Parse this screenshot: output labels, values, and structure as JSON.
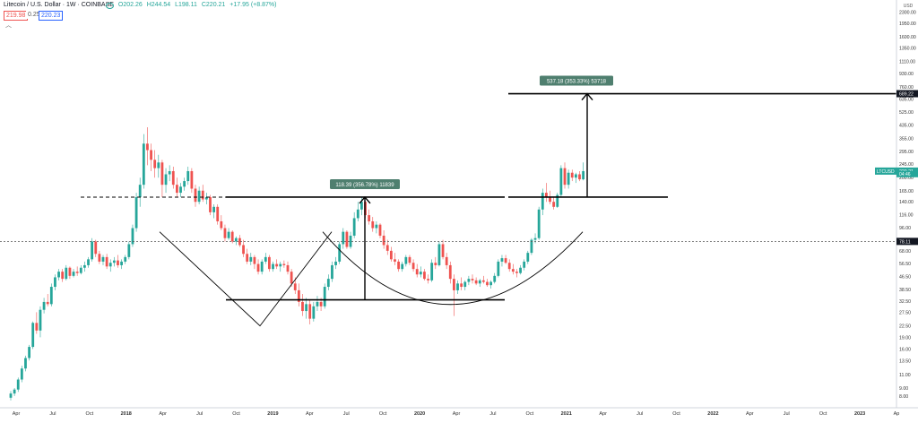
{
  "header": {
    "symbol": "Litecoin / U.S. Dollar · 1W · COINBASE",
    "open": "O202.26",
    "high": "H244.54",
    "low": "L198.11",
    "close": "C220.21",
    "change": "+17.95 (+8.87%)",
    "sell_price": "219.98",
    "spread": "0.25",
    "buy_price": "220.23",
    "collapse_glyph": "︿"
  },
  "colors": {
    "up": "#26a69a",
    "down": "#ef5350",
    "annotation": "#000000",
    "label_bg": "#4f7f6f"
  },
  "chart_data": {
    "type": "candlestick",
    "y_scale": "log",
    "currency_label": "USD",
    "ylim": [
      7,
      2600
    ],
    "y_ticks": [
      "2600.00",
      "2300.00",
      "1950.00",
      "1600.00",
      "1350.00",
      "1110.00",
      "930.00",
      "760.00",
      "635.00",
      "525.00",
      "435.00",
      "355.00",
      "295.00",
      "245.00",
      "200.00",
      "165.00",
      "140.00",
      "116.00",
      "96.00",
      "78.00",
      "68.00",
      "56.50",
      "46.50",
      "38.50",
      "32.50",
      "27.50",
      "22.50",
      "19.00",
      "16.00",
      "13.50",
      "11.00",
      "9.00",
      "8.00"
    ],
    "x_ticks": [
      "Apr",
      "Jul",
      "Oct",
      "2018",
      "Apr",
      "Jul",
      "Oct",
      "2019",
      "Apr",
      "Jul",
      "Oct",
      "2020",
      "Apr",
      "Jul",
      "Oct",
      "2021",
      "Apr",
      "Jul",
      "Oct",
      "2022",
      "Apr",
      "Jul",
      "Oct",
      "2023",
      "Ap"
    ],
    "price_markers": [
      {
        "label": "689.22",
        "value": 689.22
      },
      {
        "label": "LTCUSD",
        "value": 220.21
      },
      {
        "label": "220.21",
        "value": 220.21
      },
      {
        "label": "04:46",
        "value": 212
      },
      {
        "label": "78.11",
        "value": 78.11
      }
    ],
    "measurements": [
      {
        "label": "118.39 (356.78%) 11839",
        "from": 33,
        "to": 150
      },
      {
        "label": "537.18 (353.33%) 53718",
        "from": 150,
        "to": 689
      }
    ],
    "levels": [
      {
        "value": 150
      },
      {
        "value": 33
      },
      {
        "value": 689
      },
      {
        "value": 78.11
      }
    ],
    "candles": [
      [
        7.8,
        8.6,
        7.5,
        8.3
      ],
      [
        8.3,
        9.0,
        8.0,
        8.8
      ],
      [
        8.8,
        10.5,
        8.5,
        10.2
      ],
      [
        10.2,
        12.5,
        9.8,
        12.0
      ],
      [
        12.0,
        14.5,
        11.5,
        14.0
      ],
      [
        14.0,
        17.0,
        13.5,
        16.5
      ],
      [
        16.5,
        24.0,
        16.0,
        23.5
      ],
      [
        23.5,
        27.5,
        20.0,
        21.0
      ],
      [
        21.0,
        30.0,
        19.0,
        28.5
      ],
      [
        28.5,
        34.0,
        27.0,
        32.0
      ],
      [
        32.0,
        36.0,
        30.0,
        31.0
      ],
      [
        31.0,
        42.0,
        30.0,
        40.0
      ],
      [
        40.0,
        48.0,
        38.0,
        46.0
      ],
      [
        46.0,
        52.0,
        44.0,
        50.0
      ],
      [
        50.0,
        52.0,
        43.0,
        45.0
      ],
      [
        45.0,
        55.0,
        44.0,
        53.0
      ],
      [
        53.0,
        54.0,
        45.0,
        47.0
      ],
      [
        47.0,
        52.0,
        46.0,
        50.0
      ],
      [
        50.0,
        54.0,
        47.0,
        49.0
      ],
      [
        49.0,
        55.0,
        48.0,
        53.0
      ],
      [
        53.0,
        58.0,
        50.0,
        55.0
      ],
      [
        55.0,
        62.0,
        53.0,
        60.0
      ],
      [
        60.0,
        82.0,
        58.0,
        78.0
      ],
      [
        78.0,
        80.0,
        62.0,
        65.0
      ],
      [
        65.0,
        68.0,
        56.0,
        58.0
      ],
      [
        58.0,
        64.0,
        55.0,
        62.0
      ],
      [
        62.0,
        65.0,
        52.0,
        54.0
      ],
      [
        54.0,
        60.0,
        50.0,
        57.0
      ],
      [
        57.0,
        62.0,
        54.0,
        59.0
      ],
      [
        59.0,
        64.0,
        53.0,
        55.0
      ],
      [
        55.0,
        60.0,
        52.0,
        58.0
      ],
      [
        58.0,
        64.0,
        56.0,
        62.0
      ],
      [
        62.0,
        78.0,
        60.0,
        75.0
      ],
      [
        75.0,
        100.0,
        72.0,
        95.0
      ],
      [
        95.0,
        160.0,
        90.0,
        150.0
      ],
      [
        150.0,
        200.0,
        130.0,
        180.0
      ],
      [
        180.0,
        380.0,
        170.0,
        330.0
      ],
      [
        330.0,
        420.0,
        240.0,
        300.0
      ],
      [
        300.0,
        330.0,
        220.0,
        260.0
      ],
      [
        260.0,
        300.0,
        200.0,
        230.0
      ],
      [
        230.0,
        280.0,
        200.0,
        250.0
      ],
      [
        250.0,
        260.0,
        150.0,
        180.0
      ],
      [
        180.0,
        230.0,
        160.0,
        210.0
      ],
      [
        210.0,
        240.0,
        190.0,
        220.0
      ],
      [
        220.0,
        235.0,
        170.0,
        180.0
      ],
      [
        180.0,
        200.0,
        150.0,
        160.0
      ],
      [
        160.0,
        185.0,
        150.0,
        175.0
      ],
      [
        175.0,
        200.0,
        165.0,
        190.0
      ],
      [
        190.0,
        235.0,
        180.0,
        220.0
      ],
      [
        220.0,
        230.0,
        160.0,
        170.0
      ],
      [
        170.0,
        180.0,
        130.0,
        140.0
      ],
      [
        140.0,
        175.0,
        135.0,
        165.0
      ],
      [
        165.0,
        180.0,
        140.0,
        145.0
      ],
      [
        145.0,
        160.0,
        135.0,
        150.0
      ],
      [
        150.0,
        155.0,
        115.0,
        120.0
      ],
      [
        120.0,
        135.0,
        110.0,
        130.0
      ],
      [
        130.0,
        135.0,
        100.0,
        105.0
      ],
      [
        105.0,
        115.0,
        92.0,
        95.0
      ],
      [
        95.0,
        100.0,
        78.0,
        82.0
      ],
      [
        82.0,
        95.0,
        80.0,
        90.0
      ],
      [
        90.0,
        92.0,
        76.0,
        78.0
      ],
      [
        78.0,
        84.0,
        74.0,
        82.0
      ],
      [
        82.0,
        86.0,
        72.0,
        74.0
      ],
      [
        74.0,
        80.0,
        62.0,
        65.0
      ],
      [
        65.0,
        70.0,
        56.0,
        58.0
      ],
      [
        58.0,
        66.0,
        55.0,
        62.0
      ],
      [
        62.0,
        64.0,
        52.0,
        56.0
      ],
      [
        56.0,
        60.0,
        48.0,
        50.0
      ],
      [
        50.0,
        60.0,
        48.0,
        58.0
      ],
      [
        58.0,
        66.0,
        56.0,
        62.0
      ],
      [
        62.0,
        64.0,
        50.0,
        52.0
      ],
      [
        52.0,
        58.0,
        50.0,
        56.0
      ],
      [
        56.0,
        60.0,
        52.0,
        54.0
      ],
      [
        54.0,
        58.0,
        50.0,
        56.0
      ],
      [
        56.0,
        59.0,
        53.0,
        55.0
      ],
      [
        55.0,
        58.0,
        48.0,
        50.0
      ],
      [
        50.0,
        52.0,
        40.0,
        42.0
      ],
      [
        42.0,
        46.0,
        36.0,
        38.0
      ],
      [
        38.0,
        42.0,
        30.0,
        32.0
      ],
      [
        32.0,
        36.0,
        26.0,
        28.0
      ],
      [
        28.0,
        34.0,
        25.0,
        31.0
      ],
      [
        31.0,
        33.0,
        23.0,
        25.0
      ],
      [
        25.0,
        32.0,
        24.0,
        30.0
      ],
      [
        30.0,
        35.0,
        28.0,
        32.0
      ],
      [
        32.0,
        34.0,
        28.0,
        30.0
      ],
      [
        30.0,
        42.0,
        29.0,
        40.0
      ],
      [
        40.0,
        48.0,
        38.0,
        45.0
      ],
      [
        45.0,
        58.0,
        43.0,
        55.0
      ],
      [
        55.0,
        62.0,
        52.0,
        58.0
      ],
      [
        58.0,
        78.0,
        56.0,
        75.0
      ],
      [
        75.0,
        95.0,
        70.0,
        90.0
      ],
      [
        90.0,
        92.0,
        70.0,
        72.0
      ],
      [
        72.0,
        90.0,
        70.0,
        85.0
      ],
      [
        85.0,
        120.0,
        82.0,
        110.0
      ],
      [
        110.0,
        140.0,
        105.0,
        125.0
      ],
      [
        125.0,
        150.0,
        115.0,
        140.0
      ],
      [
        140.0,
        142.0,
        110.0,
        115.0
      ],
      [
        115.0,
        125.0,
        100.0,
        105.0
      ],
      [
        105.0,
        112.0,
        90.0,
        95.0
      ],
      [
        95.0,
        105.0,
        88.0,
        100.0
      ],
      [
        100.0,
        102.0,
        82.0,
        85.0
      ],
      [
        85.0,
        92.0,
        70.0,
        74.0
      ],
      [
        74.0,
        80.0,
        64.0,
        68.0
      ],
      [
        68.0,
        72.0,
        58.0,
        60.0
      ],
      [
        60.0,
        66.0,
        55.0,
        58.0
      ],
      [
        58.0,
        60.0,
        50.0,
        52.0
      ],
      [
        52.0,
        58.0,
        50.0,
        56.0
      ],
      [
        56.0,
        64.0,
        54.0,
        62.0
      ],
      [
        62.0,
        64.0,
        55.0,
        57.0
      ],
      [
        57.0,
        60.0,
        50.0,
        52.0
      ],
      [
        52.0,
        56.0,
        46.0,
        48.0
      ],
      [
        48.0,
        54.0,
        46.0,
        50.0
      ],
      [
        50.0,
        52.0,
        44.0,
        45.0
      ],
      [
        45.0,
        48.0,
        42.0,
        44.0
      ],
      [
        44.0,
        60.0,
        43.0,
        57.0
      ],
      [
        57.0,
        62.0,
        52.0,
        55.0
      ],
      [
        55.0,
        78.0,
        54.0,
        75.0
      ],
      [
        75.0,
        80.0,
        60.0,
        62.0
      ],
      [
        62.0,
        66.0,
        52.0,
        55.0
      ],
      [
        55.0,
        58.0,
        42.0,
        45.0
      ],
      [
        45.0,
        48.0,
        26.0,
        38.0
      ],
      [
        38.0,
        44.0,
        36.0,
        42.0
      ],
      [
        42.0,
        46.0,
        38.0,
        40.0
      ],
      [
        40.0,
        44.0,
        38.0,
        43.0
      ],
      [
        43.0,
        47.0,
        41.0,
        45.0
      ],
      [
        45.0,
        48.0,
        42.0,
        44.0
      ],
      [
        44.0,
        46.0,
        41.0,
        42.0
      ],
      [
        42.0,
        45.0,
        40.0,
        44.0
      ],
      [
        44.0,
        47.0,
        42.0,
        43.0
      ],
      [
        43.0,
        45.0,
        40.0,
        41.0
      ],
      [
        41.0,
        44.0,
        39.0,
        43.0
      ],
      [
        43.0,
        49.0,
        42.0,
        47.0
      ],
      [
        47.0,
        60.0,
        46.0,
        58.0
      ],
      [
        58.0,
        64.0,
        54.0,
        61.0
      ],
      [
        61.0,
        64.0,
        56.0,
        57.0
      ],
      [
        57.0,
        60.0,
        50.0,
        52.0
      ],
      [
        52.0,
        56.0,
        48.0,
        50.0
      ],
      [
        50.0,
        52.0,
        46.0,
        49.0
      ],
      [
        49.0,
        55.0,
        48.0,
        53.0
      ],
      [
        53.0,
        60.0,
        51.0,
        58.0
      ],
      [
        58.0,
        68.0,
        56.0,
        66.0
      ],
      [
        66.0,
        82.0,
        64.0,
        80.0
      ],
      [
        80.0,
        88.0,
        76.0,
        82.0
      ],
      [
        82.0,
        130.0,
        80.0,
        125.0
      ],
      [
        125.0,
        170.0,
        115.0,
        160.0
      ],
      [
        160.0,
        185.0,
        140.0,
        150.0
      ],
      [
        150.0,
        165.0,
        135.0,
        140.0
      ],
      [
        140.0,
        150.0,
        125.0,
        130.0
      ],
      [
        130.0,
        160.0,
        128.0,
        155.0
      ],
      [
        155.0,
        240.0,
        150.0,
        230.0
      ],
      [
        230.0,
        250.0,
        170.0,
        180.0
      ],
      [
        180.0,
        225.0,
        170.0,
        215.0
      ],
      [
        215.0,
        225.0,
        190.0,
        200.0
      ],
      [
        200.0,
        215.0,
        185.0,
        210.0
      ],
      [
        210.0,
        220.0,
        190.0,
        195.0
      ],
      [
        195.0,
        250.0,
        192.0,
        220.0
      ]
    ]
  }
}
